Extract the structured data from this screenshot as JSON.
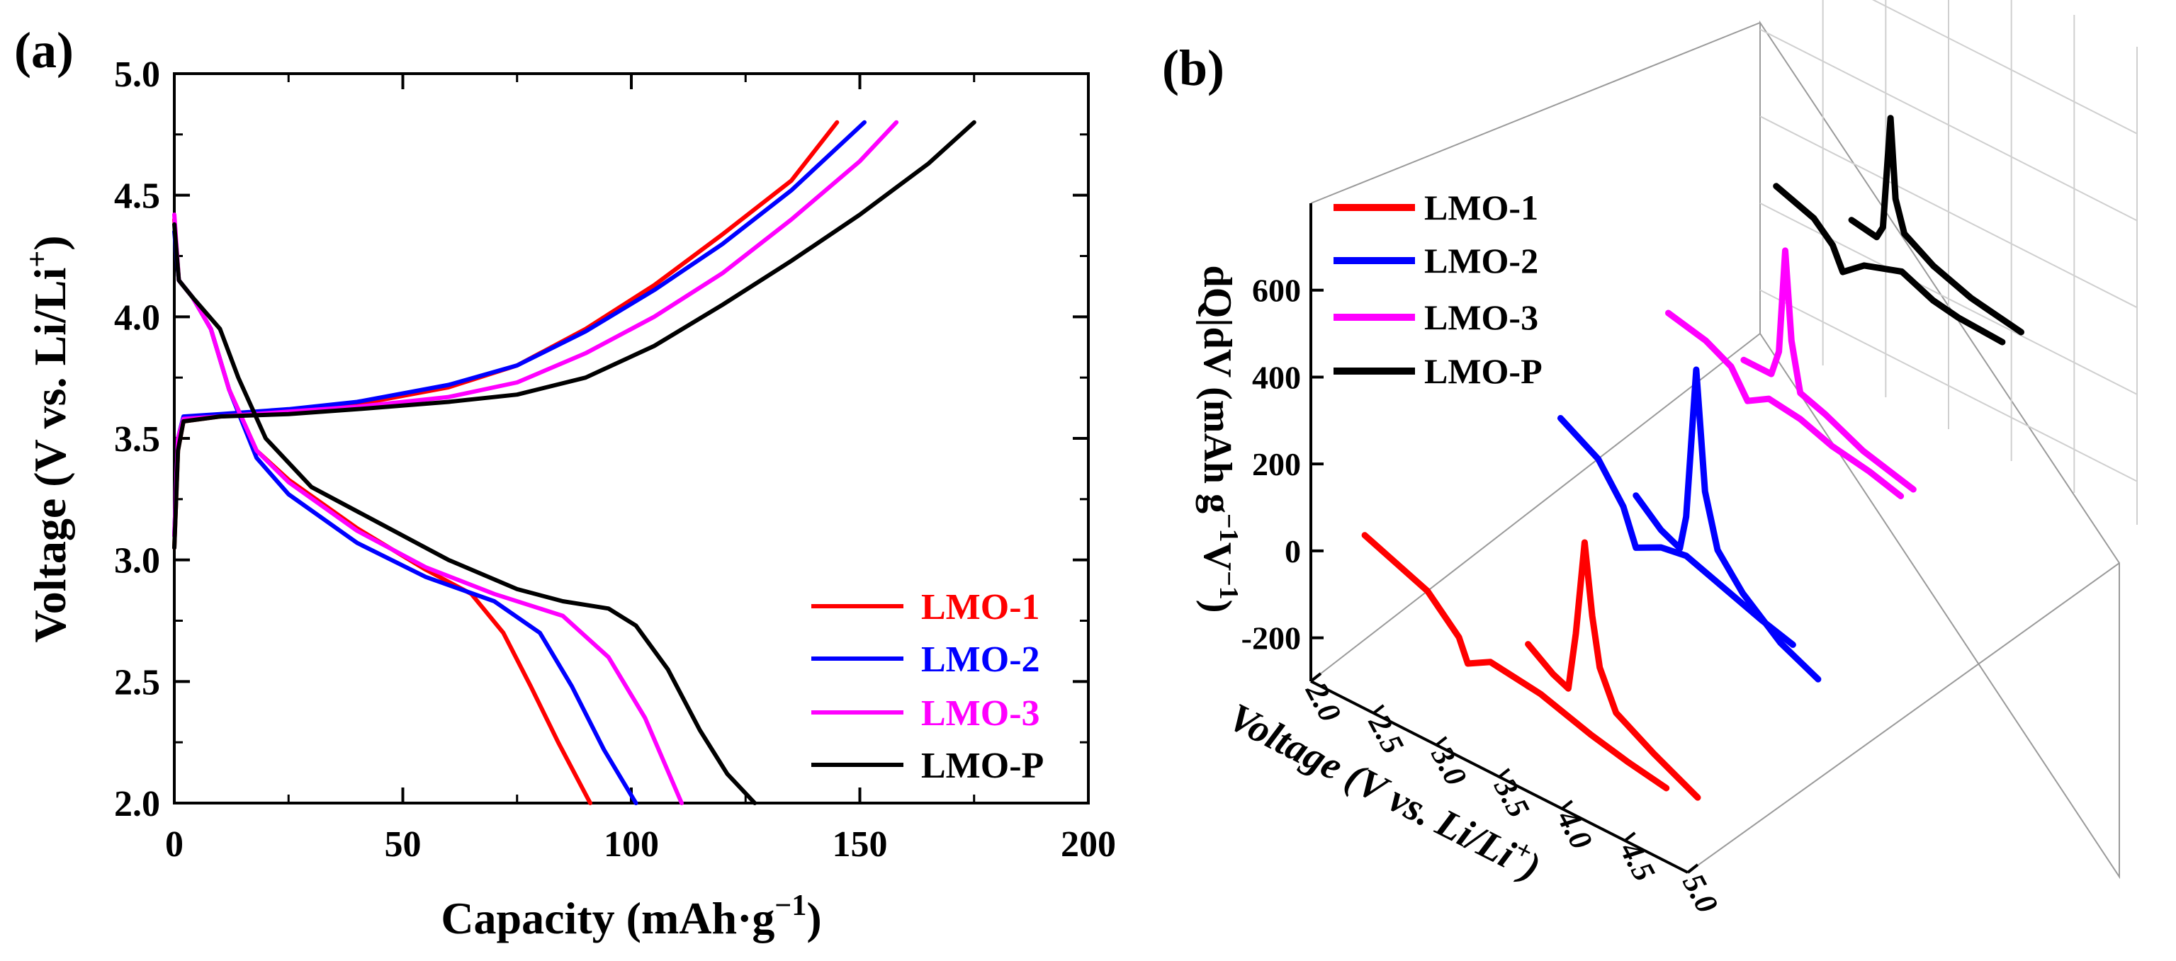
{
  "chart_data": [
    {
      "panel_label": "(a)",
      "type": "line",
      "xlabel": "Capacity (mAh·g",
      "xlabel_sup": "−1",
      "xlabel_end": ")",
      "ylabel": "Voltage (V vs. Li/Li",
      "ylabel_sup": "+",
      "ylabel_end": ")",
      "xlim": [
        0,
        200
      ],
      "ylim": [
        2.0,
        5.0
      ],
      "xticks": [
        "0",
        "50",
        "100",
        "150",
        "200"
      ],
      "yticks": [
        "2.0",
        "2.5",
        "3.0",
        "3.5",
        "4.0",
        "4.5",
        "5.0"
      ],
      "legend_position": "bottom-right",
      "series": [
        {
          "name": "LMO-1",
          "color": "#ff0000",
          "charge": [
            [
              0,
              3.05
            ],
            [
              0.8,
              3.45
            ],
            [
              2,
              3.57
            ],
            [
              10,
              3.59
            ],
            [
              25,
              3.61
            ],
            [
              40,
              3.64
            ],
            [
              60,
              3.71
            ],
            [
              75,
              3.8
            ],
            [
              90,
              3.95
            ],
            [
              105,
              4.13
            ],
            [
              120,
              4.34
            ],
            [
              135,
              4.56
            ],
            [
              145,
              4.8
            ]
          ],
          "discharge": [
            [
              0,
              4.4
            ],
            [
              1,
              4.15
            ],
            [
              4,
              4.08
            ],
            [
              8,
              3.95
            ],
            [
              12,
              3.7
            ],
            [
              18,
              3.45
            ],
            [
              25,
              3.33
            ],
            [
              40,
              3.13
            ],
            [
              55,
              2.96
            ],
            [
              65,
              2.86
            ],
            [
              72,
              2.7
            ],
            [
              78,
              2.48
            ],
            [
              84,
              2.25
            ],
            [
              91,
              2.0
            ]
          ]
        },
        {
          "name": "LMO-2",
          "color": "#0000ff",
          "charge": [
            [
              0,
              3.1
            ],
            [
              0.8,
              3.5
            ],
            [
              2,
              3.59
            ],
            [
              10,
              3.6
            ],
            [
              25,
              3.62
            ],
            [
              40,
              3.65
            ],
            [
              60,
              3.72
            ],
            [
              75,
              3.8
            ],
            [
              90,
              3.94
            ],
            [
              105,
              4.11
            ],
            [
              120,
              4.3
            ],
            [
              135,
              4.52
            ],
            [
              151,
              4.8
            ]
          ],
          "discharge": [
            [
              0,
              4.35
            ],
            [
              1,
              4.15
            ],
            [
              4,
              4.08
            ],
            [
              8,
              3.95
            ],
            [
              12,
              3.7
            ],
            [
              18,
              3.42
            ],
            [
              25,
              3.27
            ],
            [
              40,
              3.07
            ],
            [
              55,
              2.93
            ],
            [
              70,
              2.83
            ],
            [
              80,
              2.7
            ],
            [
              87,
              2.48
            ],
            [
              94,
              2.22
            ],
            [
              101,
              2.0
            ]
          ]
        },
        {
          "name": "LMO-3",
          "color": "#ff00ff",
          "charge": [
            [
              0,
              3.1
            ],
            [
              0.8,
              3.5
            ],
            [
              2,
              3.58
            ],
            [
              10,
              3.59
            ],
            [
              25,
              3.61
            ],
            [
              40,
              3.63
            ],
            [
              60,
              3.67
            ],
            [
              75,
              3.73
            ],
            [
              90,
              3.85
            ],
            [
              105,
              4.0
            ],
            [
              120,
              4.18
            ],
            [
              135,
              4.4
            ],
            [
              150,
              4.64
            ],
            [
              158,
              4.8
            ]
          ],
          "discharge": [
            [
              0,
              4.42
            ],
            [
              1,
              4.15
            ],
            [
              4,
              4.08
            ],
            [
              8,
              3.95
            ],
            [
              12,
              3.7
            ],
            [
              18,
              3.45
            ],
            [
              25,
              3.32
            ],
            [
              40,
              3.12
            ],
            [
              55,
              2.97
            ],
            [
              70,
              2.86
            ],
            [
              85,
              2.77
            ],
            [
              95,
              2.6
            ],
            [
              103,
              2.35
            ],
            [
              111,
              2.0
            ]
          ]
        },
        {
          "name": "LMO-P",
          "color": "#000000",
          "charge": [
            [
              0,
              3.05
            ],
            [
              0.8,
              3.45
            ],
            [
              2,
              3.57
            ],
            [
              10,
              3.59
            ],
            [
              25,
              3.6
            ],
            [
              40,
              3.62
            ],
            [
              60,
              3.65
            ],
            [
              75,
              3.68
            ],
            [
              90,
              3.75
            ],
            [
              105,
              3.88
            ],
            [
              120,
              4.05
            ],
            [
              135,
              4.23
            ],
            [
              150,
              4.42
            ],
            [
              165,
              4.63
            ],
            [
              175,
              4.8
            ]
          ],
          "discharge": [
            [
              0,
              4.38
            ],
            [
              1,
              4.15
            ],
            [
              4,
              4.08
            ],
            [
              10,
              3.95
            ],
            [
              14,
              3.75
            ],
            [
              20,
              3.5
            ],
            [
              30,
              3.3
            ],
            [
              45,
              3.15
            ],
            [
              60,
              3.0
            ],
            [
              75,
              2.88
            ],
            [
              85,
              2.83
            ],
            [
              95,
              2.8
            ],
            [
              101,
              2.73
            ],
            [
              108,
              2.55
            ],
            [
              115,
              2.3
            ],
            [
              121,
              2.12
            ],
            [
              127,
              2.0
            ]
          ]
        }
      ]
    },
    {
      "panel_label": "(b)",
      "type": "line",
      "projection": "3d-waterfall",
      "xlabel": "Voltage (V vs. Li/Li",
      "xlabel_sup": "+",
      "xlabel_end": ")",
      "zlabel": "dQ|dV (mAh g",
      "zlabel_sup": "−1",
      "zlabel_mid": "V",
      "zlabel_sup2": "−1",
      "zlabel_end": ")",
      "xlim": [
        2.0,
        5.0
      ],
      "zlim": [
        -300,
        800
      ],
      "xticks": [
        "2.0",
        "2.5",
        "3.0",
        "3.5",
        "4.0",
        "4.5",
        "5.0"
      ],
      "zticks": [
        "600",
        "400",
        "200",
        "0",
        "-200"
      ],
      "legend_position": "top-left",
      "series": [
        {
          "name": "LMO-1",
          "color": "#ff0000",
          "discharge": [
            [
              2.0,
              -60
            ],
            [
              2.5,
              -115
            ],
            [
              2.75,
              -185
            ],
            [
              2.82,
              -235
            ],
            [
              3.0,
              -205
            ],
            [
              3.4,
              -220
            ],
            [
              3.8,
              -255
            ],
            [
              4.1,
              -275
            ],
            [
              4.4,
              -290
            ]
          ],
          "charge": [
            [
              3.3,
              -120
            ],
            [
              3.5,
              -160
            ],
            [
              3.62,
              -175
            ],
            [
              3.68,
              -40
            ],
            [
              3.75,
              180
            ],
            [
              3.81,
              20
            ],
            [
              3.87,
              -90
            ],
            [
              4.0,
              -175
            ],
            [
              4.3,
              -225
            ],
            [
              4.65,
              -275
            ]
          ]
        },
        {
          "name": "LMO-2",
          "color": "#0000ff",
          "discharge": [
            [
              2.7,
              120
            ],
            [
              3.0,
              70
            ],
            [
              3.2,
              -10
            ],
            [
              3.3,
              -90
            ],
            [
              3.5,
              -60
            ],
            [
              3.7,
              -50
            ],
            [
              4.0,
              -80
            ],
            [
              4.3,
              -110
            ],
            [
              4.55,
              -130
            ]
          ],
          "charge": [
            [
              3.3,
              30
            ],
            [
              3.5,
              -20
            ],
            [
              3.65,
              -40
            ],
            [
              3.7,
              40
            ],
            [
              3.78,
              390
            ],
            [
              3.85,
              120
            ],
            [
              3.95,
              0
            ],
            [
              4.15,
              -70
            ],
            [
              4.45,
              -140
            ],
            [
              4.75,
              -180
            ]
          ]
        },
        {
          "name": "LMO-3",
          "color": "#ff00ff",
          "discharge": [
            [
              2.7,
              170
            ],
            [
              3.0,
              150
            ],
            [
              3.2,
              120
            ],
            [
              3.33,
              60
            ],
            [
              3.5,
              90
            ],
            [
              3.75,
              80
            ],
            [
              4.0,
              55
            ],
            [
              4.3,
              40
            ],
            [
              4.55,
              20
            ]
          ],
          "charge": [
            [
              3.3,
              150
            ],
            [
              3.52,
              150
            ],
            [
              3.58,
              210
            ],
            [
              3.63,
              450
            ],
            [
              3.68,
              250
            ],
            [
              3.75,
              140
            ],
            [
              3.95,
              120
            ],
            [
              4.25,
              80
            ],
            [
              4.65,
              50
            ]
          ]
        },
        {
          "name": "LMO-P",
          "color": "#000000",
          "discharge": [
            [
              2.7,
              270
            ],
            [
              3.0,
              240
            ],
            [
              3.15,
              200
            ],
            [
              3.23,
              150
            ],
            [
              3.4,
              190
            ],
            [
              3.7,
              220
            ],
            [
              3.95,
              190
            ],
            [
              4.15,
              180
            ],
            [
              4.5,
              175
            ]
          ],
          "charge": [
            [
              3.3,
              280
            ],
            [
              3.5,
              270
            ],
            [
              3.55,
              300
            ],
            [
              3.61,
              560
            ],
            [
              3.65,
              380
            ],
            [
              3.72,
              310
            ],
            [
              3.95,
              270
            ],
            [
              4.25,
              240
            ],
            [
              4.65,
              220
            ]
          ]
        }
      ]
    }
  ]
}
